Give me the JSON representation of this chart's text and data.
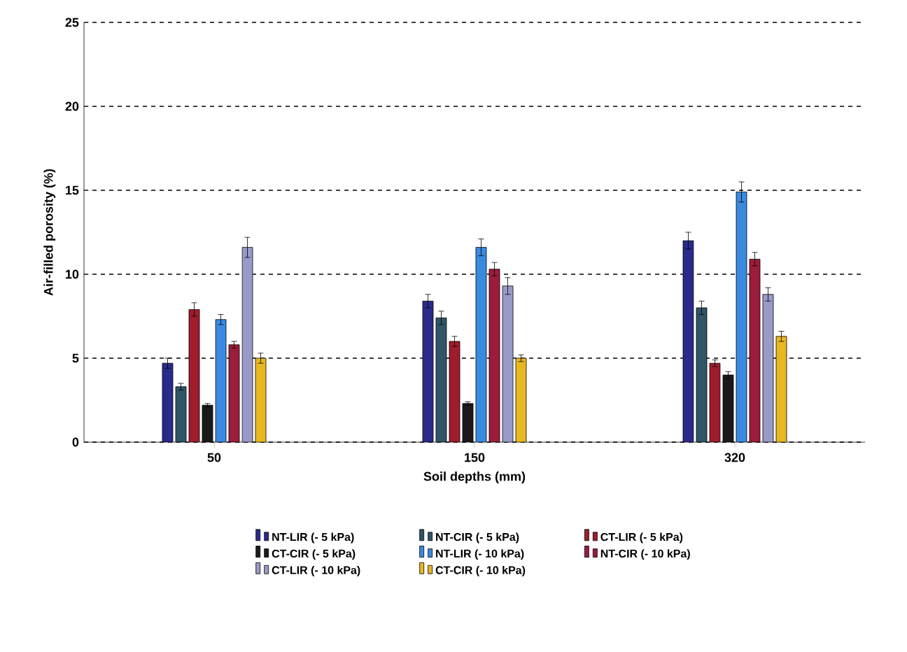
{
  "chart_data": {
    "type": "bar",
    "xlabel": "Soil depths (mm)",
    "ylabel": "Air-filled porosity (%)",
    "categories": [
      "50",
      "150",
      "320"
    ],
    "series": [
      {
        "name": "NT-LIR (- 5 kPa)",
        "color": "#2a2a8c",
        "values": [
          4.7,
          8.4,
          12.0
        ],
        "errors": [
          0.3,
          0.4,
          0.5
        ]
      },
      {
        "name": "NT-CIR (- 5 kPa)",
        "color": "#2f5566",
        "values": [
          3.3,
          7.4,
          8.0
        ],
        "errors": [
          0.2,
          0.4,
          0.4
        ]
      },
      {
        "name": "CT-LIR (- 5 kPa)",
        "color": "#a01c2c",
        "values": [
          7.9,
          6.0,
          4.7
        ],
        "errors": [
          0.4,
          0.3,
          0.2
        ]
      },
      {
        "name": "CT-CIR (- 5 kPa)",
        "color": "#1a1a1a",
        "values": [
          2.2,
          2.3,
          4.0
        ],
        "errors": [
          0.1,
          0.1,
          0.2
        ]
      },
      {
        "name": "NT-LIR (- 10 kPa)",
        "color": "#3a8ae0",
        "values": [
          7.3,
          11.6,
          14.9
        ],
        "errors": [
          0.3,
          0.5,
          0.6
        ]
      },
      {
        "name": "NT-CIR (- 10 kPa)",
        "color": "#9c1c3c",
        "values": [
          5.8,
          10.3,
          10.9
        ],
        "errors": [
          0.2,
          0.4,
          0.4
        ]
      },
      {
        "name": "CT-LIR (- 10 kPa)",
        "color": "#9a9ac8",
        "values": [
          11.6,
          9.3,
          8.8
        ],
        "errors": [
          0.6,
          0.5,
          0.4
        ]
      },
      {
        "name": "CT-CIR (- 10 kPa)",
        "color": "#e8b820",
        "values": [
          5.0,
          5.0,
          6.3
        ],
        "errors": [
          0.3,
          0.2,
          0.3
        ]
      }
    ],
    "ylim": [
      0,
      25
    ],
    "yticks": [
      0,
      5,
      10,
      15,
      20,
      25
    ],
    "grid": "y",
    "legend": "bottom"
  }
}
